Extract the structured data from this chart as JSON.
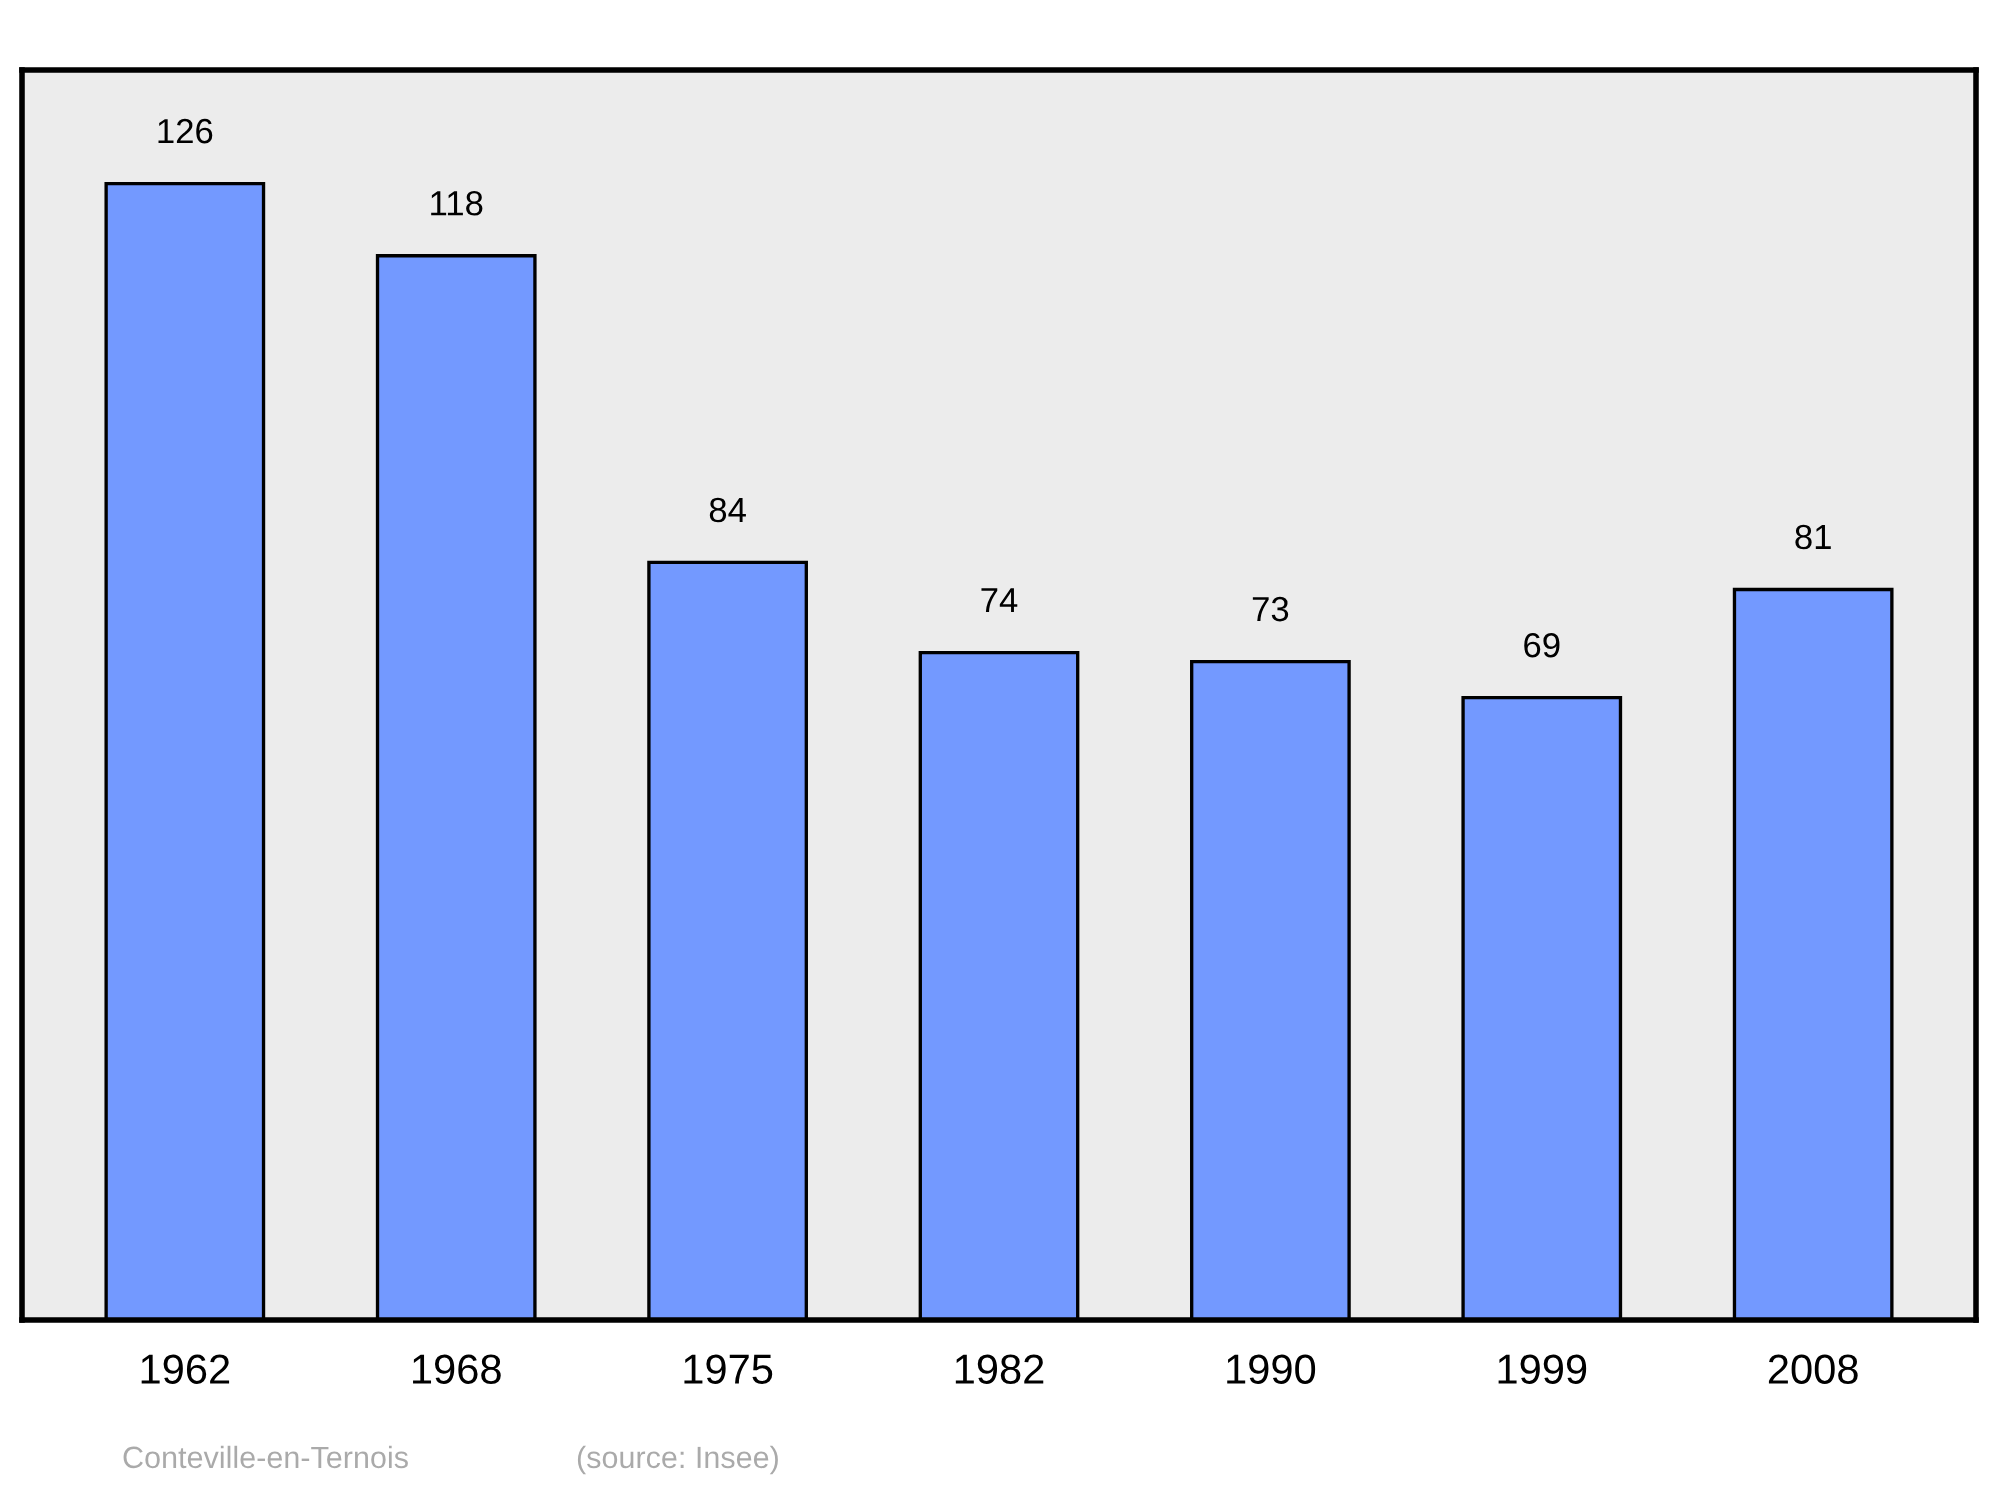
{
  "chart_data": {
    "type": "bar",
    "categories": [
      "1962",
      "1968",
      "1975",
      "1982",
      "1990",
      "1999",
      "2008"
    ],
    "values": [
      126,
      118,
      84,
      74,
      73,
      69,
      81
    ],
    "color": "#7399ff",
    "data_labels": true,
    "annotations": [
      "Conteville-en-Ternois",
      "(source: Insee)"
    ]
  }
}
